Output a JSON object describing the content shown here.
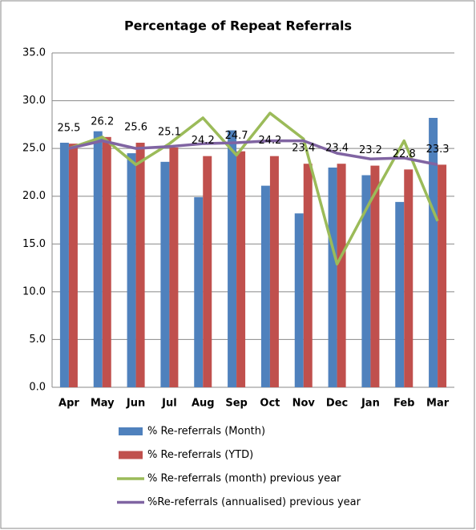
{
  "chart_data": {
    "type": "bar",
    "title": "Percentage of Repeat Referrals",
    "categories": [
      "Apr",
      "May",
      "Jun",
      "Jul",
      "Aug",
      "Sep",
      "Oct",
      "Nov",
      "Dec",
      "Jan",
      "Feb",
      "Mar"
    ],
    "series": [
      {
        "name": "% Re-referrals (Month)",
        "type": "bar",
        "color": "#4f81bd",
        "values": [
          25.6,
          26.8,
          24.5,
          23.6,
          19.9,
          26.9,
          21.1,
          18.2,
          23.0,
          22.2,
          19.4,
          28.2
        ]
      },
      {
        "name": "% Re-referrals (YTD)",
        "type": "bar",
        "color": "#c0504d",
        "data_labels": true,
        "values": [
          25.5,
          26.2,
          25.6,
          25.1,
          24.2,
          24.7,
          24.2,
          23.4,
          23.4,
          23.2,
          22.8,
          23.3
        ]
      },
      {
        "name": "% Re-referrals (month) previous year",
        "type": "line",
        "color": "#9bbb59",
        "values": [
          25.0,
          26.2,
          23.3,
          25.5,
          28.2,
          24.3,
          28.7,
          26.0,
          12.9,
          19.5,
          25.8,
          17.4
        ]
      },
      {
        "name": "%Re-referrals (annualised) previous year",
        "type": "line",
        "color": "#8064a2",
        "values": [
          25.0,
          25.8,
          25.0,
          25.2,
          25.5,
          25.6,
          25.8,
          25.8,
          24.5,
          23.9,
          24.0,
          23.3
        ]
      }
    ],
    "ylim": [
      0,
      35
    ],
    "yticks": [
      {
        "value": 0,
        "label": "0.0"
      },
      {
        "value": 5,
        "label": "5.0"
      },
      {
        "value": 10,
        "label": "10.0"
      },
      {
        "value": 15,
        "label": "15.0"
      },
      {
        "value": 20,
        "label": "20.0"
      },
      {
        "value": 25,
        "label": "25.0"
      },
      {
        "value": 30,
        "label": "30.0"
      },
      {
        "value": 35,
        "label": "35.0"
      }
    ],
    "grid": true
  }
}
